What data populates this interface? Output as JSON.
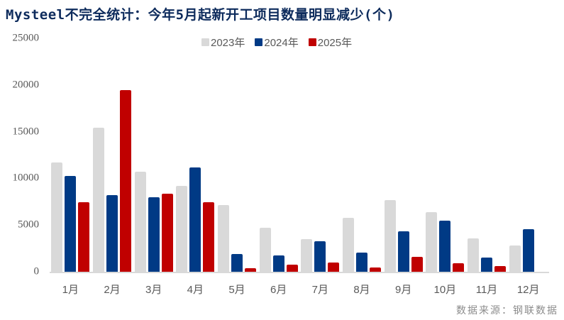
{
  "title": "Mysteel不完全统计：今年5月起新开工项目数量明显减少(个)",
  "source": "数据来源：钢联数据",
  "colors": {
    "2023": "#d9d9d9",
    "2024": "#003a85",
    "2025": "#c00000"
  },
  "legend": [
    {
      "label": "2023年",
      "color": "#d9d9d9"
    },
    {
      "label": "2024年",
      "color": "#003a85"
    },
    {
      "label": "2025年",
      "color": "#c00000"
    }
  ],
  "chart_data": {
    "type": "bar",
    "title": "Mysteel不完全统计：今年5月起新开工项目数量明显减少(个)",
    "xlabel": "",
    "ylabel": "",
    "ylim": [
      0,
      25000
    ],
    "yticks": [
      0,
      5000,
      10000,
      15000,
      20000,
      25000
    ],
    "grid": false,
    "legend_position": "top",
    "categories": [
      "1月",
      "2月",
      "3月",
      "4月",
      "5月",
      "6月",
      "7月",
      "8月",
      "9月",
      "10月",
      "11月",
      "12月"
    ],
    "series": [
      {
        "name": "2023年",
        "color": "#d9d9d9",
        "values": [
          11700,
          15450,
          10750,
          9200,
          7150,
          4720,
          3500,
          5780,
          7690,
          6390,
          3580,
          2820
        ]
      },
      {
        "name": "2024年",
        "color": "#003a85",
        "values": [
          10270,
          8220,
          7990,
          11190,
          1900,
          1750,
          3270,
          2050,
          4340,
          5480,
          1520,
          4570
        ]
      },
      {
        "name": "2025年",
        "color": "#c00000",
        "values": [
          7460,
          19480,
          8370,
          7460,
          380,
          760,
          990,
          460,
          1600,
          910,
          610,
          null
        ]
      }
    ]
  }
}
